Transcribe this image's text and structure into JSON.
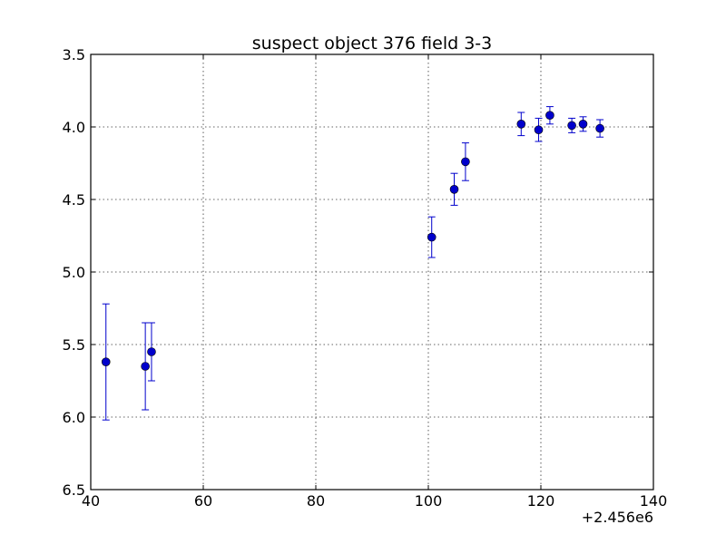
{
  "chart_data": {
    "type": "scatter",
    "title": "suspect object 376 field 3-3",
    "xlabel": "",
    "ylabel": "",
    "x_offset_label": "+2.456e6",
    "xlim": [
      40,
      140
    ],
    "ylim": [
      3.5,
      6.5
    ],
    "y_inverted": true,
    "grid": true,
    "x_ticks": [
      40,
      60,
      80,
      100,
      120,
      140
    ],
    "x_tick_labels": [
      "40",
      "60",
      "80",
      "100",
      "120",
      "140"
    ],
    "y_ticks": [
      3.5,
      4.0,
      4.5,
      5.0,
      5.5,
      6.0,
      6.5
    ],
    "y_tick_labels": [
      "3.5",
      "4.0",
      "4.5",
      "5.0",
      "5.5",
      "6.0",
      "6.5"
    ],
    "series": [
      {
        "color": "#0000cc",
        "marker": "circle",
        "x": [
          42.7,
          49.7,
          50.8,
          100.6,
          104.6,
          106.6,
          116.5,
          119.6,
          121.6,
          125.5,
          127.5,
          130.5
        ],
        "y": [
          5.62,
          5.65,
          5.55,
          4.76,
          4.43,
          4.24,
          3.98,
          4.02,
          3.92,
          3.99,
          3.98,
          4.01
        ],
        "yerr": [
          0.4,
          0.3,
          0.2,
          0.14,
          0.11,
          0.13,
          0.08,
          0.08,
          0.06,
          0.05,
          0.05,
          0.06
        ]
      }
    ]
  }
}
